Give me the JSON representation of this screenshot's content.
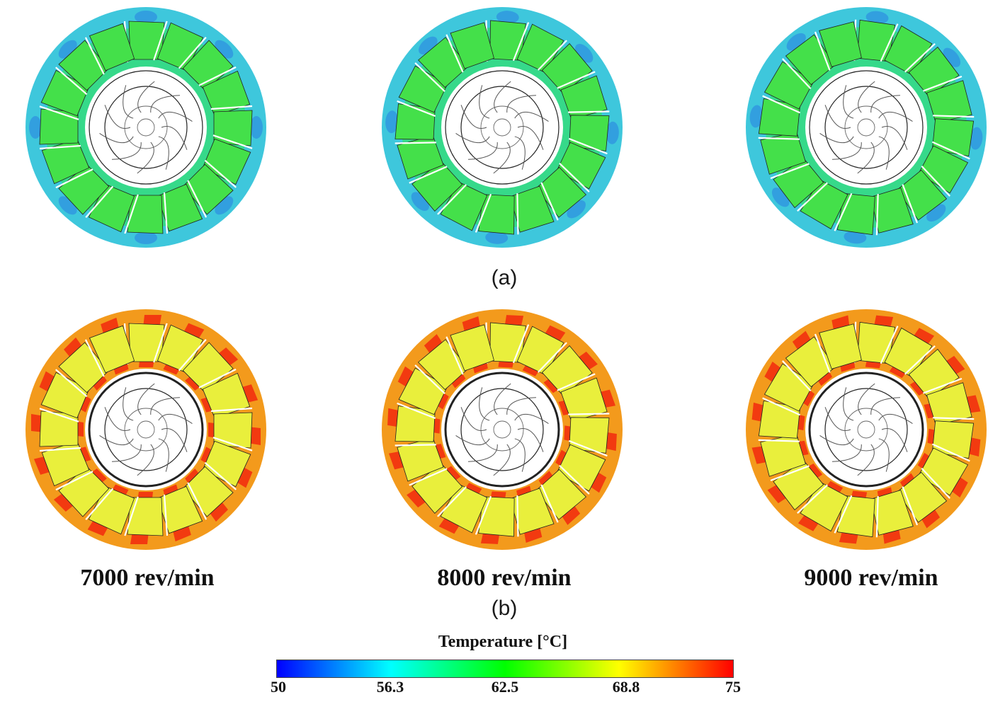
{
  "panels": {
    "a": {
      "label": "(a)"
    },
    "b": {
      "label": "(b)"
    }
  },
  "speeds": [
    "7000 rev/min",
    "8000 rev/min",
    "9000 rev/min"
  ],
  "legend": {
    "title": "Temperature [°C]",
    "ticks": [
      "50",
      "56.3",
      "62.5",
      "68.8",
      "75"
    ],
    "colors": [
      "#0000ff",
      "#00ffff",
      "#00ff00",
      "#ffff00",
      "#ff0000"
    ]
  },
  "colors": {
    "a_outer": "#3ec7dc",
    "a_outer_dark": "#2e8ee0",
    "a_mid": "#36d98a",
    "a_slot": "#44e04a",
    "b_outer": "#f39a1c",
    "b_channel": "#f23a10",
    "b_slot": "#e9ef3c",
    "hub": "#ffffff",
    "line": "#222222"
  }
}
